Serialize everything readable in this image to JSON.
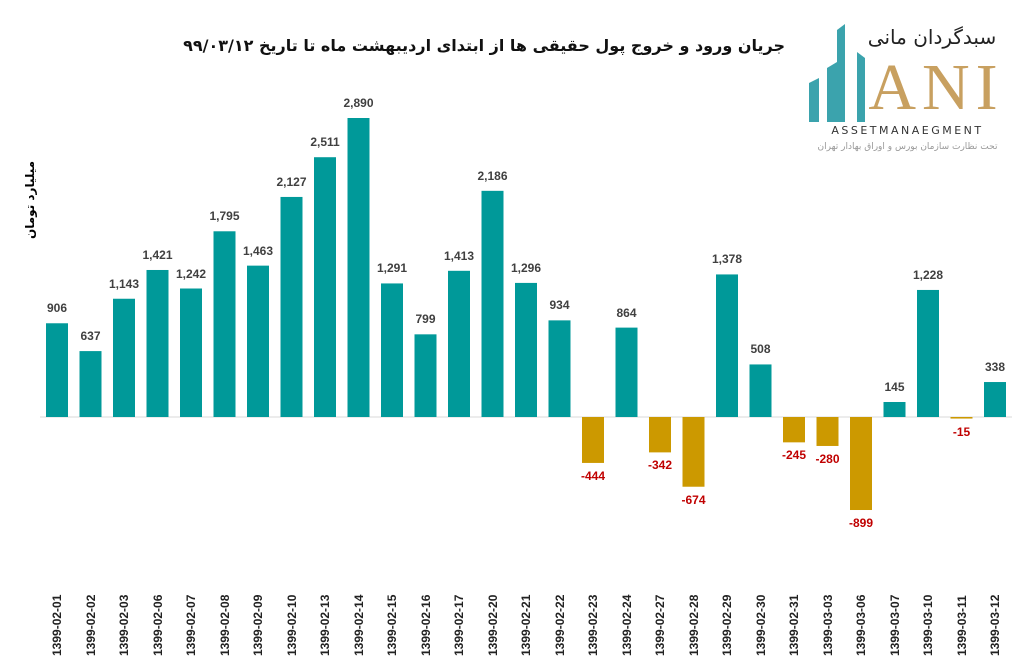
{
  "title": "جریان ورود و خروج پول حقیقی ها از ابتدای اردیبهشت ماه تا تاریخ ۹۹/۰۳/۱۲",
  "logo": {
    "persian_name": "سبدگردان مانی",
    "letters": "ANI",
    "english": "ASSETMANAEGMENT",
    "subtitle": "تحت نظارت سازمان بورس و اوراق بهادار تهران"
  },
  "chart_data": {
    "type": "bar",
    "title": "جریان ورود و خروج پول حقیقی ها از ابتدای اردیبهشت ماه تا تاریخ ۹۹/۰۳/۱۲",
    "ylabel": "میلیارد تومان",
    "xlabel": "",
    "ylim": [
      -1500,
      3000
    ],
    "grid": false,
    "colors": {
      "positive": "#009999",
      "negative": "#CC9900",
      "positive_label": "#404040",
      "negative_label": "#C00000"
    },
    "categories": [
      "1399-02-01",
      "1399-02-02",
      "1399-02-03",
      "1399-02-06",
      "1399-02-07",
      "1399-02-08",
      "1399-02-09",
      "1399-02-10",
      "1399-02-13",
      "1399-02-14",
      "1399-02-15",
      "1399-02-16",
      "1399-02-17",
      "1399-02-20",
      "1399-02-21",
      "1399-02-22",
      "1399-02-23",
      "1399-02-24",
      "1399-02-27",
      "1399-02-28",
      "1399-02-29",
      "1399-02-30",
      "1399-02-31",
      "1399-03-03",
      "1399-03-06",
      "1399-03-07",
      "1399-03-10",
      "1399-03-11",
      "1399-03-12"
    ],
    "values": [
      906,
      637,
      1143,
      1421,
      1242,
      1795,
      1463,
      2127,
      2511,
      2890,
      1291,
      799,
      1413,
      2186,
      1296,
      934,
      -444,
      864,
      -342,
      -674,
      1378,
      508,
      -245,
      -280,
      -899,
      145,
      1228,
      -15,
      338
    ],
    "data_labels": [
      "906",
      "637",
      "1,143",
      "1,421",
      "1,242",
      "1,795",
      "1,463",
      "2,127",
      "2,511",
      "2,890",
      "1,291",
      "799",
      "1,413",
      "2,186",
      "1,296",
      "934",
      "-444",
      "864",
      "-342",
      "-674",
      "1,378",
      "508",
      "-245",
      "-280",
      "-899",
      "145",
      "1,228",
      "-15",
      "338"
    ]
  }
}
